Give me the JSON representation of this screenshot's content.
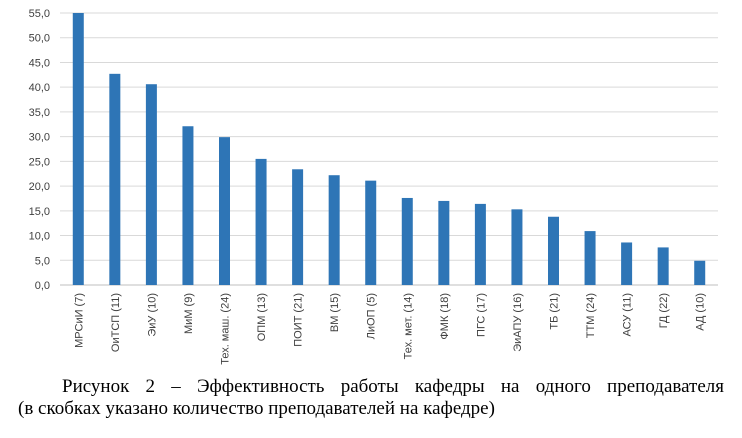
{
  "chart_data": {
    "type": "bar",
    "categories": [
      "МРСиИ (7)",
      "ОиТСП (11)",
      "ЭиУ (10)",
      "МиМ (9)",
      "Тех. маш. (24)",
      "ОПМ (13)",
      "ПОИТ (21)",
      "ВМ (15)",
      "ЛиОП (5)",
      "Тех. мет. (14)",
      "ФМК (18)",
      "ПГС (17)",
      "ЭиАПУ (16)",
      "ТБ (21)",
      "ТТМ (24)",
      "АСУ (11)",
      "ГД (22)",
      "АД (10)"
    ],
    "values": [
      55.0,
      42.7,
      40.6,
      32.1,
      29.9,
      25.5,
      23.4,
      22.2,
      21.1,
      17.6,
      17.0,
      16.4,
      15.3,
      13.8,
      10.9,
      8.6,
      7.6,
      4.9
    ],
    "yticks": [
      "0,0",
      "5,0",
      "10,0",
      "15,0",
      "20,0",
      "25,0",
      "30,0",
      "35,0",
      "40,0",
      "45,0",
      "50,0",
      "55,0"
    ],
    "ylim": [
      0,
      55
    ],
    "grid": true,
    "bar_color": "#2E75B6",
    "grid_color": "#D9D9D9"
  },
  "caption": {
    "line1": "Рисунок 2 – Эффективность работы кафедры на одного преподавателя",
    "line2": "(в скобках указано количество преподавателей на кафедре)"
  }
}
